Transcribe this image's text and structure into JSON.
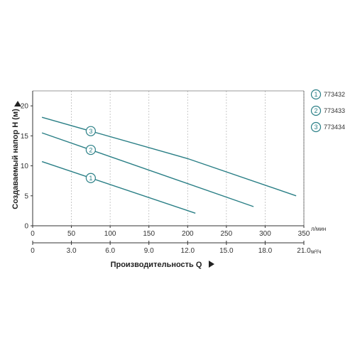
{
  "chart_data": {
    "type": "line",
    "xlabel": "Производительность Q",
    "ylabel": "Создаваемый напор H (м)",
    "x_unit": "л/мин",
    "x2_unit": "м³/ч",
    "xlim": [
      0,
      350
    ],
    "ylim": [
      0,
      22.5
    ],
    "x_ticks": [
      "0",
      "50",
      "100",
      "150",
      "200",
      "250",
      "300",
      "350"
    ],
    "x_tick_values": [
      0,
      50,
      100,
      150,
      200,
      250,
      300,
      350
    ],
    "x2_ticks": [
      "0",
      "3.0",
      "6.0",
      "9.0",
      "12.0",
      "15.0",
      "18.0",
      "21.0"
    ],
    "y_ticks": [
      "0",
      "5",
      "10",
      "15",
      "20"
    ],
    "y_tick_values": [
      0,
      5,
      10,
      15,
      20
    ],
    "grid": "x-only dashed",
    "legend_position": "right",
    "series": [
      {
        "name": "773432",
        "marker": "1",
        "x": [
          12,
          210
        ],
        "y": [
          10.7,
          2.1
        ],
        "marker_x": 75
      },
      {
        "name": "773433",
        "marker": "2",
        "x": [
          12,
          285
        ],
        "y": [
          15.5,
          3.2
        ],
        "marker_x": 75
      },
      {
        "name": "773434",
        "marker": "3",
        "x": [
          12,
          200,
          340
        ],
        "y": [
          18.1,
          11.2,
          5.0
        ],
        "marker_x": 75
      }
    ],
    "colors": {
      "line": "#2a7f86",
      "axis": "#333333",
      "grid": "#bbbbbb"
    }
  }
}
